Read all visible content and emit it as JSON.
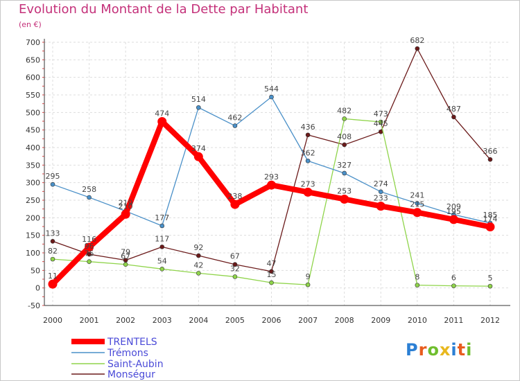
{
  "chart_data": {
    "type": "line",
    "title": "Evolution du Montant de la Dette par Habitant",
    "unit_label": "(en €)",
    "x": [
      "2000",
      "2001",
      "2002",
      "2003",
      "2004",
      "2005",
      "2006",
      "2007",
      "2008",
      "2009",
      "2010",
      "2011",
      "2012"
    ],
    "ylim": [
      -50,
      700
    ],
    "yticks": [
      -50,
      0,
      50,
      100,
      150,
      200,
      250,
      300,
      350,
      400,
      450,
      500,
      550,
      600,
      650,
      700
    ],
    "grid": true,
    "legend_position": "bottom-left",
    "series": [
      {
        "name": "TRENTELS",
        "color": "#ff0000",
        "values": [
          11,
          116,
          210,
          474,
          374,
          238,
          293,
          273,
          253,
          233,
          215,
          195,
          174
        ]
      },
      {
        "name": "Trémons",
        "color": "#4a90c8",
        "values": [
          295,
          258,
          219,
          177,
          514,
          462,
          544,
          362,
          327,
          274,
          241,
          209,
          185
        ]
      },
      {
        "name": "Saint-Aubin",
        "color": "#8fd44a",
        "values": [
          82,
          75,
          67,
          54,
          42,
          32,
          15,
          9,
          482,
          473,
          8,
          6,
          5
        ]
      },
      {
        "name": "Monségur",
        "color": "#6b1a1a",
        "values": [
          133,
          96,
          79,
          117,
          92,
          67,
          47,
          436,
          408,
          445,
          682,
          487,
          366
        ]
      }
    ]
  },
  "logo": {
    "text": "Proxiti",
    "letters": [
      {
        "ch": "P",
        "color": "#2b7fd4"
      },
      {
        "ch": "r",
        "color": "#e85c1e"
      },
      {
        "ch": "o",
        "color": "#6fbe2e"
      },
      {
        "ch": "x",
        "color": "#e8b81e"
      },
      {
        "ch": "i",
        "color": "#2b7fd4"
      },
      {
        "ch": "t",
        "color": "#e85c1e"
      },
      {
        "ch": "i",
        "color": "#6fbe2e"
      }
    ]
  }
}
